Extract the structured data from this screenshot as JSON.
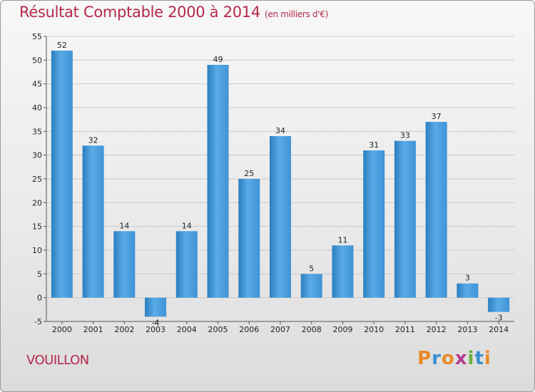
{
  "header": {
    "title": "Résultat Comptable 2000 à 2014",
    "subtitle": "(en milliers d'€)"
  },
  "footer": {
    "town": "VOUILLON",
    "brand": "Proxiti"
  },
  "colors": {
    "title": "#b5284b",
    "bar_light": "#5aaae6",
    "bar_dark": "#2b7fc0",
    "brand_letters": [
      "#e98a2b",
      "#3a8fd0",
      "#e98a2b",
      "#b53a8c",
      "#6cae3e",
      "#3a8fd0",
      "#e98a2b"
    ]
  },
  "chart_data": {
    "type": "bar",
    "title": "Résultat Comptable 2000 à 2014",
    "subtitle": "(en milliers d'€)",
    "xlabel": "",
    "ylabel": "",
    "categories": [
      "2000",
      "2001",
      "2002",
      "2003",
      "2004",
      "2005",
      "2006",
      "2007",
      "2008",
      "2009",
      "2010",
      "2011",
      "2012",
      "2013",
      "2014"
    ],
    "values": [
      52,
      32,
      14,
      -4,
      14,
      49,
      25,
      34,
      5,
      11,
      31,
      33,
      37,
      3,
      -3
    ],
    "ylim": [
      -5,
      55
    ],
    "yticks": [
      -5,
      0,
      5,
      10,
      15,
      20,
      25,
      30,
      35,
      40,
      45,
      50,
      55
    ],
    "grid": true,
    "legend": "none"
  }
}
